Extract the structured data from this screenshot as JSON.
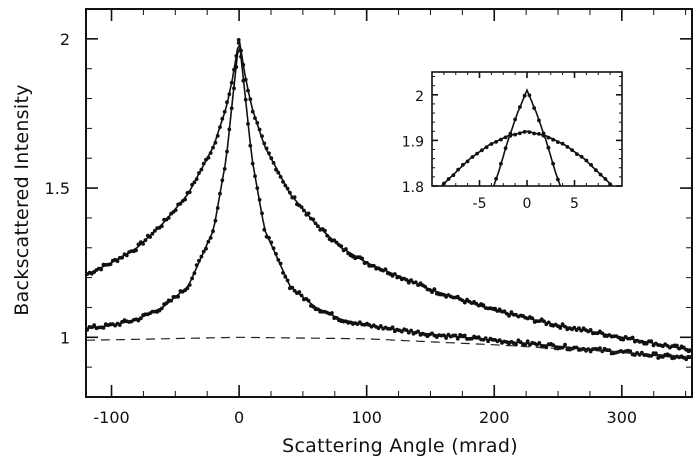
{
  "chart_data": [
    {
      "type": "scatter",
      "xlabel": "Scattering Angle (mrad)",
      "ylabel": "Backscattered Intensity",
      "xlim": [
        -120,
        355
      ],
      "ylim": [
        0.8,
        2.1
      ],
      "x_ticks": [
        -100,
        0,
        100,
        200,
        300
      ],
      "x_tick_labels": [
        "-100",
        "0",
        "100",
        "200",
        "300"
      ],
      "y_ticks": [
        1,
        1.5,
        2
      ],
      "y_tick_labels": [
        "1",
        "1.5",
        "2"
      ],
      "grid": false,
      "legend": "none",
      "series": [
        {
          "kind": "points+fit",
          "x": [
            -120,
            -100,
            -80,
            -60,
            -40,
            -20,
            -10,
            -5,
            0,
            5,
            10,
            20,
            40,
            60,
            80,
            100,
            150,
            200,
            250,
            300,
            350
          ],
          "y": [
            1.21,
            1.25,
            1.3,
            1.38,
            1.48,
            1.64,
            1.77,
            1.87,
            2.0,
            1.87,
            1.77,
            1.64,
            1.48,
            1.38,
            1.3,
            1.25,
            1.16,
            1.09,
            1.04,
            1.0,
            0.96
          ]
        },
        {
          "kind": "points+fit",
          "x": [
            -120,
            -100,
            -80,
            -60,
            -40,
            -20,
            -10,
            -5,
            0,
            5,
            10,
            20,
            40,
            60,
            80,
            100,
            150,
            200,
            250,
            300,
            350
          ],
          "y": [
            1.03,
            1.04,
            1.06,
            1.1,
            1.17,
            1.36,
            1.6,
            1.8,
            2.0,
            1.8,
            1.6,
            1.36,
            1.17,
            1.1,
            1.06,
            1.04,
            1.01,
            0.99,
            0.97,
            0.95,
            0.93
          ]
        },
        {
          "kind": "dashed-background",
          "x": [
            -120,
            0,
            100,
            200,
            300,
            355
          ],
          "y": [
            0.99,
            1.0,
            0.995,
            0.975,
            0.95,
            0.935
          ]
        }
      ]
    },
    {
      "type": "scatter",
      "role": "inset",
      "xlim": [
        -10,
        10
      ],
      "ylim": [
        1.8,
        2.05
      ],
      "x_ticks": [
        -5,
        0,
        5
      ],
      "x_tick_labels": [
        "-5",
        "0",
        "5"
      ],
      "y_ticks": [
        1.8,
        1.9,
        2
      ],
      "y_tick_labels": [
        "1.8",
        "1.9",
        "2"
      ],
      "grid": false,
      "series": [
        {
          "kind": "points+fit",
          "x": [
            -10,
            -8,
            -6,
            -4,
            -2,
            0,
            2,
            4,
            6,
            8,
            10
          ],
          "y": [
            1.78,
            1.82,
            1.86,
            1.89,
            1.91,
            1.92,
            1.91,
            1.89,
            1.86,
            1.82,
            1.78
          ]
        },
        {
          "kind": "points+fit",
          "x": [
            -4,
            -3,
            -2,
            -1,
            0,
            1,
            2,
            3,
            4
          ],
          "y": [
            1.77,
            1.83,
            1.9,
            1.96,
            2.01,
            1.96,
            1.9,
            1.83,
            1.77
          ]
        }
      ]
    }
  ]
}
